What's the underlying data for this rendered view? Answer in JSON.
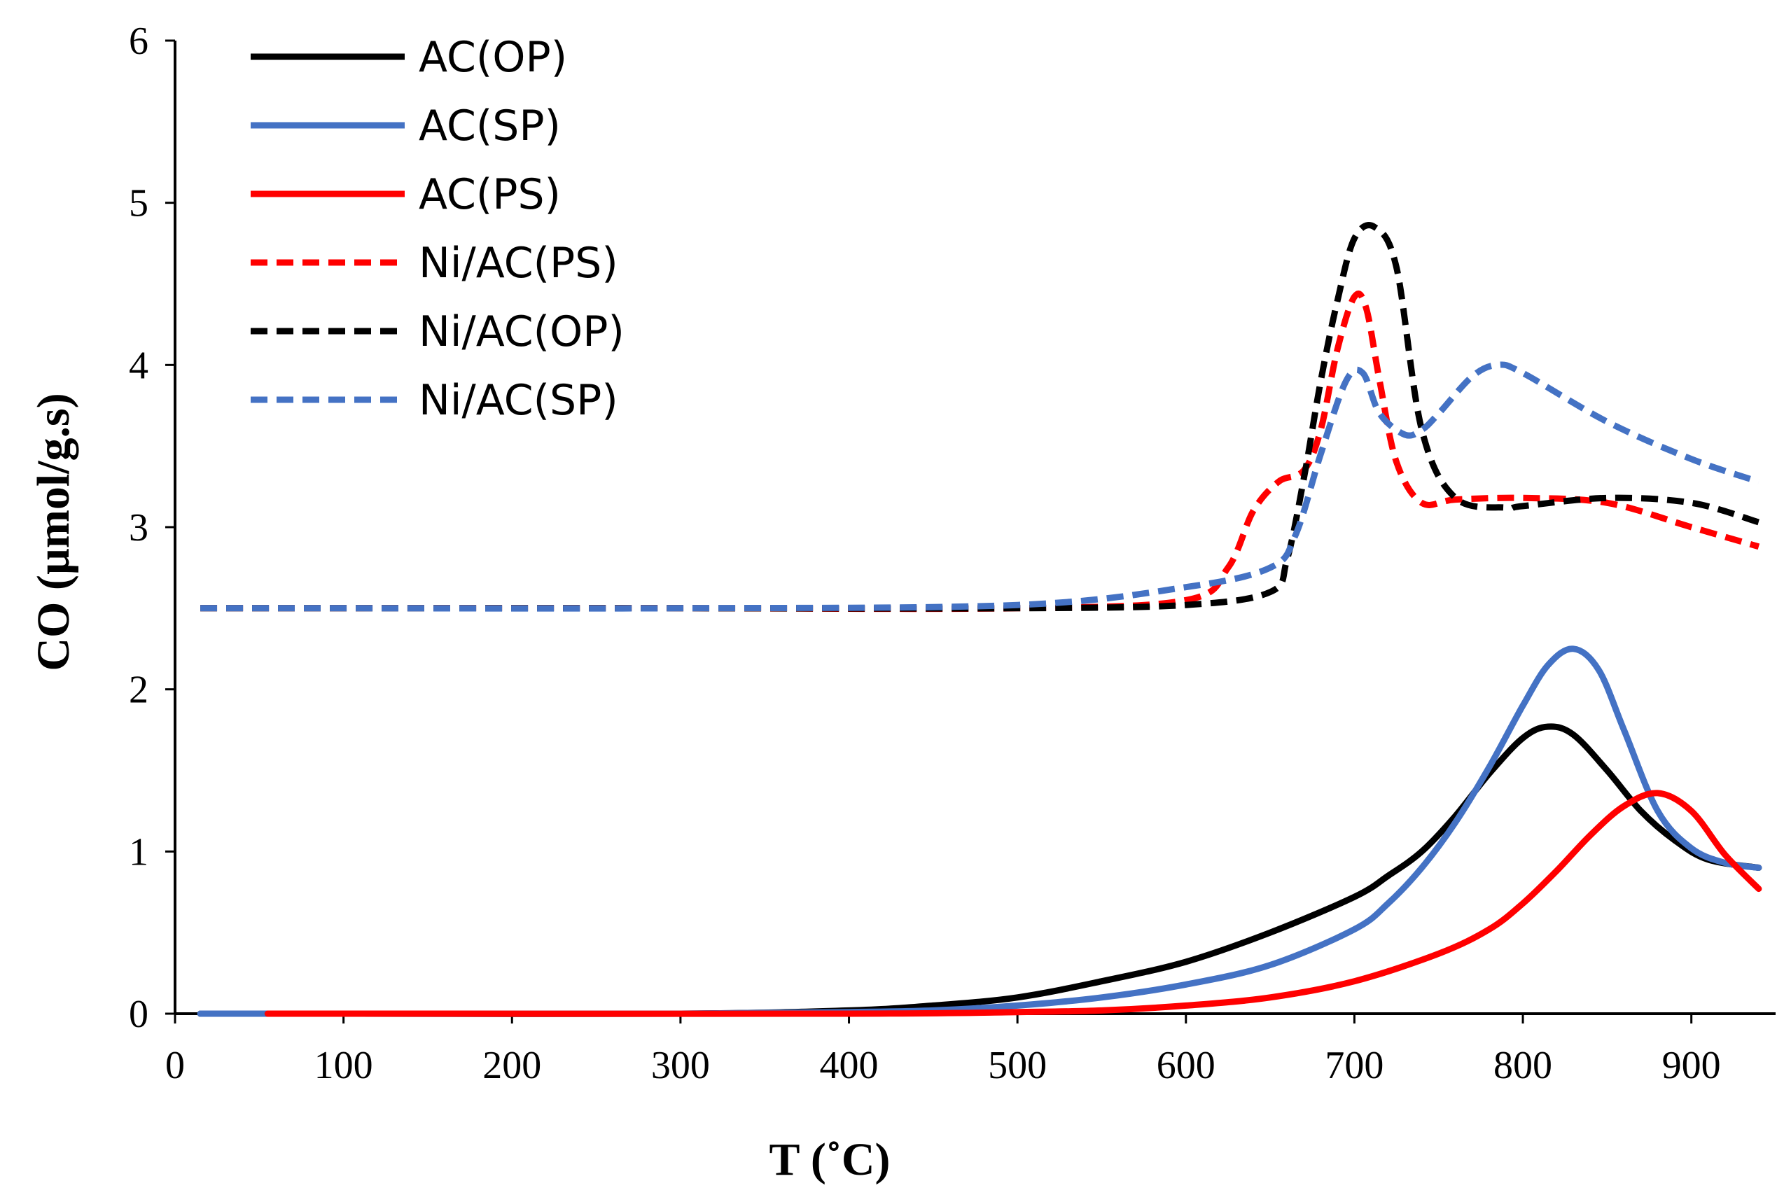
{
  "chart_data": {
    "type": "line",
    "xlabel": "T (˚C)",
    "ylabel": "CO (µmol/g.s)",
    "xlim": [
      0,
      950
    ],
    "ylim": [
      0,
      6
    ],
    "xticks": [
      "0",
      "100",
      "200",
      "300",
      "400",
      "500",
      "600",
      "700",
      "800",
      "900"
    ],
    "yticks": [
      "0",
      "1",
      "2",
      "3",
      "4",
      "5",
      "6"
    ],
    "grid": false,
    "legend_position": "top-left",
    "series": [
      {
        "name": "AC(OP)",
        "color": "#000000",
        "dash": "solid",
        "x": [
          15,
          100,
          300,
          400,
          450,
          500,
          550,
          600,
          650,
          700,
          720,
          740,
          760,
          780,
          800,
          815,
          830,
          850,
          870,
          890,
          910,
          940
        ],
        "y": [
          0,
          0,
          0,
          0.02,
          0.05,
          0.1,
          0.2,
          0.32,
          0.5,
          0.72,
          0.85,
          1.0,
          1.22,
          1.48,
          1.7,
          1.77,
          1.72,
          1.5,
          1.25,
          1.07,
          0.95,
          0.9
        ]
      },
      {
        "name": "AC(SP)",
        "color": "#4472C4",
        "dash": "solid",
        "x": [
          15,
          100,
          300,
          400,
          450,
          500,
          550,
          600,
          650,
          700,
          720,
          740,
          760,
          780,
          800,
          815,
          830,
          845,
          860,
          880,
          900,
          920,
          940
        ],
        "y": [
          0,
          0,
          0,
          0.01,
          0.02,
          0.05,
          0.1,
          0.18,
          0.3,
          0.52,
          0.68,
          0.9,
          1.18,
          1.52,
          1.9,
          2.15,
          2.25,
          2.12,
          1.75,
          1.25,
          1.02,
          0.93,
          0.9
        ]
      },
      {
        "name": "AC(PS)",
        "color": "#FF0000",
        "dash": "solid",
        "x": [
          55,
          100,
          400,
          500,
          550,
          600,
          650,
          700,
          750,
          780,
          800,
          820,
          840,
          860,
          880,
          900,
          920,
          940
        ],
        "y": [
          0,
          0,
          0,
          0.01,
          0.02,
          0.05,
          0.1,
          0.2,
          0.37,
          0.52,
          0.68,
          0.88,
          1.1,
          1.28,
          1.36,
          1.25,
          0.98,
          0.77
        ]
      },
      {
        "name": "Ni/AC(PS)",
        "color": "#FF0000",
        "dash": "dashed",
        "x": [
          15,
          100,
          300,
          500,
          600,
          625,
          640,
          655,
          670,
          680,
          690,
          700,
          707,
          715,
          725,
          740,
          760,
          800,
          850,
          900,
          940
        ],
        "y": [
          2.5,
          2.5,
          2.5,
          2.5,
          2.55,
          2.75,
          3.1,
          3.28,
          3.35,
          3.6,
          4.1,
          4.42,
          4.35,
          3.9,
          3.4,
          3.15,
          3.17,
          3.18,
          3.15,
          3.0,
          2.88
        ]
      },
      {
        "name": "Ni/AC(OP)",
        "color": "#000000",
        "dash": "dashed",
        "x": [
          15,
          100,
          300,
          500,
          600,
          650,
          660,
          670,
          680,
          690,
          700,
          712,
          725,
          740,
          760,
          790,
          800,
          850,
          900,
          940
        ],
        "y": [
          2.5,
          2.5,
          2.5,
          2.5,
          2.52,
          2.6,
          2.8,
          3.3,
          3.9,
          4.4,
          4.78,
          4.85,
          4.6,
          3.6,
          3.18,
          3.12,
          3.13,
          3.18,
          3.15,
          3.03
        ]
      },
      {
        "name": "Ni/AC(SP)",
        "color": "#4472C4",
        "dash": "dashed",
        "x": [
          15,
          100,
          300,
          500,
          600,
          650,
          665,
          680,
          695,
          705,
          715,
          730,
          740,
          750,
          770,
          785,
          800,
          850,
          900,
          940
        ],
        "y": [
          2.5,
          2.5,
          2.5,
          2.52,
          2.63,
          2.75,
          2.95,
          3.45,
          3.9,
          3.95,
          3.7,
          3.57,
          3.6,
          3.7,
          3.93,
          4.0,
          3.95,
          3.65,
          3.42,
          3.28
        ]
      }
    ]
  }
}
